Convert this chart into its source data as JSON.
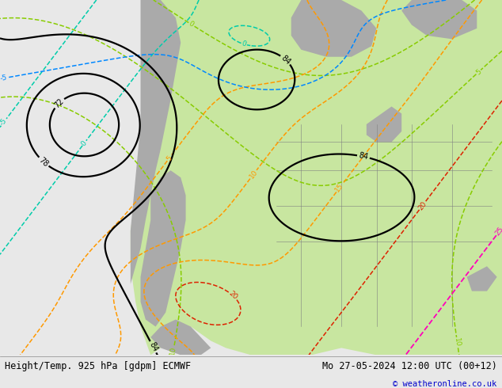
{
  "title_left": "Height/Temp. 925 hPa [gdpm] ECMWF",
  "title_right": "Mo 27-05-2024 12:00 UTC (00+12)",
  "copyright": "© weatheronline.co.uk",
  "fig_width": 6.34,
  "fig_height": 4.9,
  "dpi": 100,
  "bg_light": "#e8e8e8",
  "land_green": "#c8e6a0",
  "land_gray": "#aaaaaa",
  "label_fontsize": 8.5,
  "copyright_color": "#0000cc",
  "black_contour_lw": 1.6,
  "temp_contour_lw": 1.1
}
